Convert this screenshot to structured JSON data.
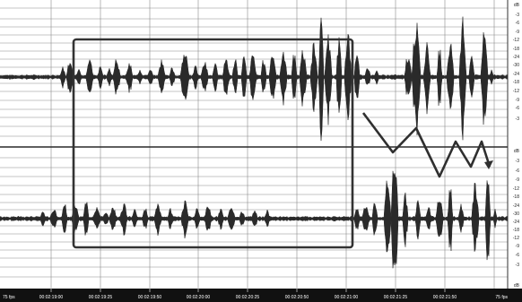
{
  "ruler": {
    "start_label": "75 fps",
    "end_label": "75 fps",
    "ticks": [
      "00:02:19:00",
      "00:02:19:25",
      "00:02:19:50",
      "00:02:20:00",
      "00:02:20:25",
      "00:02:20:50",
      "00:02:21:00",
      "00:02:21:25",
      "00:02:21:50"
    ]
  },
  "db_scale": {
    "top_track": [
      "dB",
      "-3",
      "-6",
      "-9",
      "-12",
      "-18",
      "-24",
      "-30",
      "-24",
      "-18",
      "-12",
      "-9",
      "-6",
      "-3"
    ],
    "bottom_track": [
      "dB",
      "-3",
      "-6",
      "-9",
      "-12",
      "-18",
      "-24",
      "-30",
      "-24",
      "-18",
      "-12",
      "-9",
      "-6",
      "-3",
      "dB"
    ]
  },
  "colors": {
    "background": "#ffffff",
    "grid": "#7a7a7a",
    "waveform": "#2a2a2a",
    "annotation": "#2f2f2f",
    "ruler": "#111111"
  }
}
